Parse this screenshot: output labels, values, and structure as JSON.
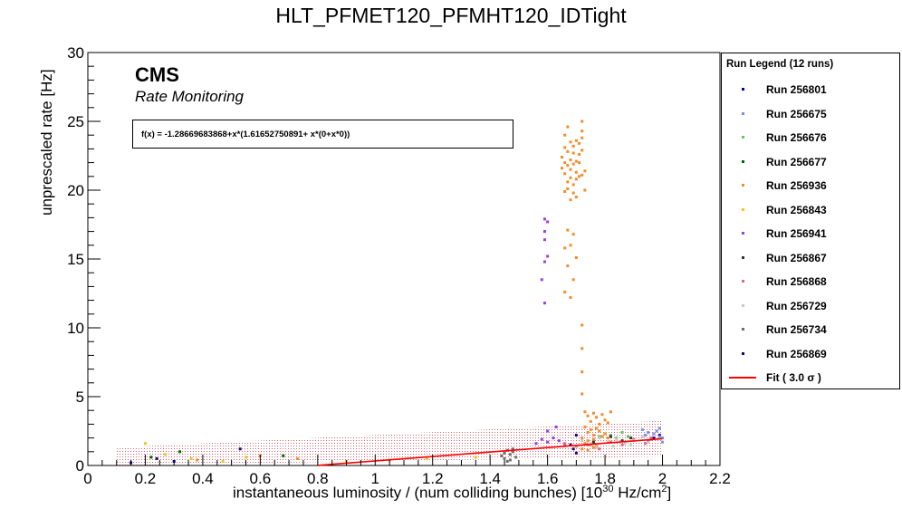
{
  "chart_data": {
    "type": "scatter",
    "title": "HLT_PFMET120_PFMHT120_IDTight",
    "xlabel": "instantaneous luminosity / (num colliding bunches) [10",
    "xlabel_sup1": "30",
    "xlabel_mid": " Hz/cm",
    "xlabel_sup2": "2",
    "xlabel_end": "]",
    "ylabel": "unprescaled rate [Hz]",
    "xlim": [
      0,
      2.2
    ],
    "ylim": [
      0,
      30
    ],
    "x_ticks": [
      "0",
      "0.2",
      "0.4",
      "0.6",
      "0.8",
      "1",
      "1.2",
      "1.4",
      "1.6",
      "1.8",
      "2",
      "2.2"
    ],
    "y_ticks": [
      "0",
      "5",
      "10",
      "15",
      "20",
      "25",
      "30"
    ],
    "cms_label": "CMS",
    "subtitle": "Rate Monitoring",
    "fit_text": "f(x) = -1.28669683868+x*(1.61652750891+ x*(0+x*0))",
    "fit": {
      "intercept": -1.28669683868,
      "slope": 1.61652750891,
      "x_range": [
        0.8,
        2.0
      ],
      "sigma": 3.0
    },
    "legend": {
      "title": "Run Legend (12 runs)",
      "placement": "right",
      "fit_label": "Fit ( 3.0 σ )"
    },
    "series": [
      {
        "name": "Run 256801",
        "color": "#0000aa",
        "points": [
          [
            0.15,
            0.2
          ],
          [
            0.3,
            0.3
          ],
          [
            1.95,
            1.8
          ],
          [
            1.97,
            2.0
          ],
          [
            1.99,
            2.2
          ]
        ]
      },
      {
        "name": "Run 256675",
        "color": "#7f8fe6",
        "points": [
          [
            1.93,
            2.6
          ],
          [
            1.95,
            2.4
          ],
          [
            1.97,
            2.3
          ],
          [
            1.99,
            2.1
          ],
          [
            2.0,
            2.0
          ],
          [
            1.96,
            1.9
          ],
          [
            1.98,
            2.5
          ],
          [
            1.94,
            2.2
          ],
          [
            2.0,
            1.7
          ],
          [
            1.99,
            2.7
          ]
        ]
      },
      {
        "name": "Run 256676",
        "color": "#5fc95f",
        "points": [
          [
            1.78,
            2.1
          ],
          [
            1.8,
            2.3
          ],
          [
            1.82,
            2.2
          ],
          [
            1.84,
            2.0
          ],
          [
            1.86,
            2.4
          ],
          [
            1.88,
            2.1
          ]
        ]
      },
      {
        "name": "Run 256677",
        "color": "#006600",
        "points": [
          [
            0.32,
            1.0
          ],
          [
            0.22,
            0.6
          ],
          [
            0.68,
            0.7
          ]
        ]
      },
      {
        "name": "Run 256936",
        "color": "#f58c2a",
        "points": [
          [
            1.66,
            22.0
          ],
          [
            1.67,
            22.8
          ],
          [
            1.68,
            21.5
          ],
          [
            1.69,
            23.2
          ],
          [
            1.7,
            22.1
          ],
          [
            1.71,
            21.0
          ],
          [
            1.72,
            23.8
          ],
          [
            1.66,
            21.2
          ],
          [
            1.67,
            20.6
          ],
          [
            1.68,
            23.5
          ],
          [
            1.69,
            21.9
          ],
          [
            1.7,
            20.8
          ],
          [
            1.71,
            22.6
          ],
          [
            1.72,
            22.9
          ],
          [
            1.73,
            21.4
          ],
          [
            1.65,
            22.4
          ],
          [
            1.66,
            23.1
          ],
          [
            1.67,
            20.1
          ],
          [
            1.68,
            22.2
          ],
          [
            1.69,
            20.4
          ],
          [
            1.7,
            23.6
          ],
          [
            1.71,
            22.0
          ],
          [
            1.72,
            21.1
          ],
          [
            1.73,
            20.0
          ],
          [
            1.65,
            21.6
          ],
          [
            1.66,
            24.0
          ],
          [
            1.67,
            21.8
          ],
          [
            1.68,
            20.9
          ],
          [
            1.69,
            22.7
          ],
          [
            1.7,
            21.3
          ],
          [
            1.71,
            23.4
          ],
          [
            1.72,
            24.3
          ],
          [
            1.67,
            24.6
          ],
          [
            1.72,
            25.0
          ],
          [
            1.69,
            19.8
          ],
          [
            1.7,
            19.5
          ],
          [
            1.66,
            19.9
          ],
          [
            1.68,
            19.3
          ],
          [
            1.66,
            15.8
          ],
          [
            1.67,
            14.5
          ],
          [
            1.68,
            16.0
          ],
          [
            1.69,
            13.5
          ],
          [
            1.66,
            12.6
          ],
          [
            1.67,
            17.1
          ],
          [
            1.69,
            16.8
          ],
          [
            1.7,
            15.1
          ],
          [
            1.68,
            12.2
          ],
          [
            1.72,
            10.2
          ],
          [
            1.72,
            8.5
          ],
          [
            1.72,
            6.8
          ],
          [
            1.72,
            5.2
          ],
          [
            1.73,
            3.9
          ],
          [
            1.74,
            3.6
          ],
          [
            1.75,
            3.2
          ],
          [
            1.76,
            3.8
          ],
          [
            1.77,
            3.5
          ],
          [
            1.78,
            3.0
          ],
          [
            1.79,
            3.7
          ],
          [
            1.8,
            3.3
          ],
          [
            1.81,
            3.1
          ],
          [
            1.82,
            3.9
          ],
          [
            1.73,
            2.8
          ],
          [
            1.74,
            2.4
          ],
          [
            1.75,
            2.6
          ],
          [
            1.76,
            2.2
          ],
          [
            1.77,
            2.7
          ],
          [
            1.78,
            2.5
          ],
          [
            1.79,
            2.1
          ],
          [
            1.8,
            2.3
          ],
          [
            1.81,
            2.0
          ],
          [
            1.72,
            2.0
          ],
          [
            1.73,
            1.6
          ],
          [
            1.74,
            1.8
          ],
          [
            1.75,
            1.5
          ],
          [
            1.76,
            1.9
          ],
          [
            1.77,
            1.4
          ],
          [
            1.72,
            1.2
          ],
          [
            1.74,
            1.1
          ],
          [
            1.76,
            1.3
          ],
          [
            0.38,
            0.4
          ],
          [
            0.6,
            0.7
          ],
          [
            0.73,
            0.5
          ]
        ]
      },
      {
        "name": "Run 256843",
        "color": "#f7c21b",
        "points": [
          [
            0.2,
            1.6
          ],
          [
            0.27,
            0.8
          ],
          [
            0.36,
            0.5
          ],
          [
            0.47,
            0.3
          ],
          [
            0.55,
            0.6
          ],
          [
            0.9,
            0.3
          ],
          [
            1.05,
            0.4
          ],
          [
            1.18,
            0.5
          ],
          [
            1.35,
            0.6
          ]
        ]
      },
      {
        "name": "Run 256941",
        "color": "#9b3fdd",
        "points": [
          [
            1.59,
            17.9
          ],
          [
            1.59,
            17.0
          ],
          [
            1.59,
            16.4
          ],
          [
            1.6,
            15.2
          ],
          [
            1.59,
            14.8
          ],
          [
            1.59,
            11.8
          ],
          [
            1.58,
            13.5
          ],
          [
            1.6,
            17.7
          ],
          [
            1.56,
            1.6
          ],
          [
            1.58,
            1.9
          ],
          [
            1.6,
            1.7
          ],
          [
            1.62,
            2.0
          ],
          [
            1.64,
            1.8
          ],
          [
            1.66,
            1.5
          ],
          [
            1.6,
            2.5
          ],
          [
            1.63,
            2.8
          ]
        ]
      },
      {
        "name": "Run 256867",
        "color": "#333333",
        "points": [
          [
            1.82,
            2.1
          ],
          [
            1.86,
            1.8
          ],
          [
            1.89,
            2.0
          ],
          [
            1.76,
            1.7
          ]
        ]
      },
      {
        "name": "Run 256868",
        "color": "#e5687f",
        "points": [
          [
            1.66,
            1.6
          ],
          [
            1.7,
            1.4
          ],
          [
            1.74,
            1.5
          ],
          [
            1.78,
            1.2
          ],
          [
            1.82,
            1.7
          ],
          [
            1.86,
            1.5
          ],
          [
            1.9,
            1.9
          ],
          [
            1.94,
            1.6
          ],
          [
            1.96,
            2.0
          ]
        ]
      },
      {
        "name": "Run 256729",
        "color": "#c8c8c8",
        "points": [
          [
            1.72,
            1.8
          ],
          [
            1.75,
            1.6
          ],
          [
            1.78,
            2.0
          ],
          [
            1.81,
            1.7
          ],
          [
            1.84,
            1.9
          ],
          [
            1.87,
            1.6
          ],
          [
            1.9,
            1.8
          ],
          [
            1.93,
            2.1
          ],
          [
            1.77,
            1.3
          ],
          [
            1.83,
            1.4
          ],
          [
            1.89,
            1.5
          ],
          [
            1.95,
            1.7
          ]
        ]
      },
      {
        "name": "Run 256734",
        "color": "#6e6e6e",
        "points": [
          [
            1.44,
            0.7
          ],
          [
            1.45,
            0.9
          ],
          [
            1.46,
            1.1
          ],
          [
            1.47,
            0.8
          ],
          [
            1.48,
            1.0
          ],
          [
            1.49,
            0.6
          ],
          [
            1.45,
            0.5
          ],
          [
            1.47,
            0.4
          ],
          [
            1.48,
            1.2
          ],
          [
            1.46,
            0.3
          ]
        ]
      },
      {
        "name": "Run 256869",
        "color": "#1a0a66",
        "points": [
          [
            0.53,
            1.2
          ],
          [
            0.24,
            0.5
          ],
          [
            1.68,
            1.5
          ],
          [
            1.7,
            2.2
          ],
          [
            1.7,
            0.9
          ],
          [
            1.69,
            1.2
          ]
        ]
      }
    ]
  }
}
